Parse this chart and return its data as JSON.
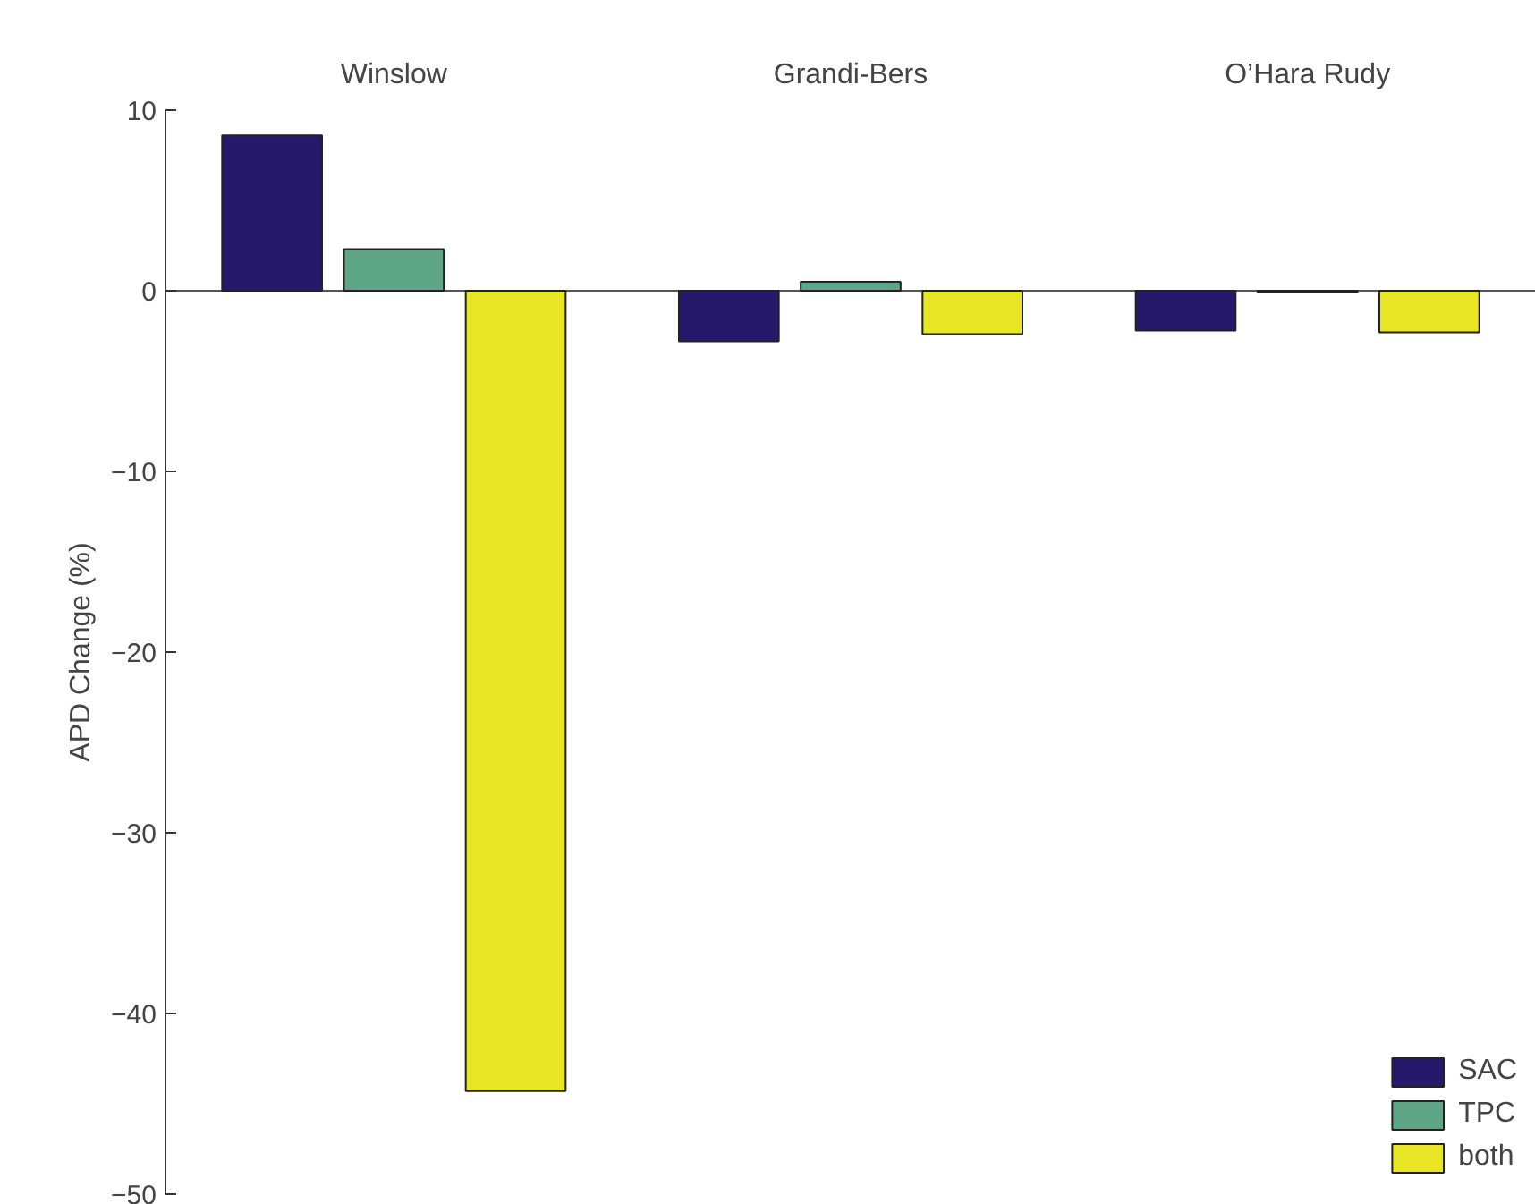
{
  "chart_data": {
    "type": "bar",
    "ylabel": "APD Change (%)",
    "categories": [
      "Winslow",
      "Grandi-Bers",
      "O’Hara Rudy"
    ],
    "series": [
      {
        "name": "SAC",
        "color": "#26186a",
        "values": [
          8.6,
          -2.8,
          -2.2
        ]
      },
      {
        "name": "TPC",
        "color": "#5ea686",
        "values": [
          2.3,
          0.5,
          -0.1
        ]
      },
      {
        "name": "both",
        "color": "#e8e524",
        "values": [
          -44.3,
          -2.4,
          -2.3
        ]
      }
    ],
    "ylim": [
      -50,
      10
    ],
    "yticks": [
      -50,
      -40,
      -30,
      -20,
      -10,
      0,
      10
    ],
    "grid": false,
    "legend": "bottom right",
    "ref_lines": [
      {
        "axis": "y",
        "value": 0,
        "color": "#555555"
      }
    ]
  }
}
